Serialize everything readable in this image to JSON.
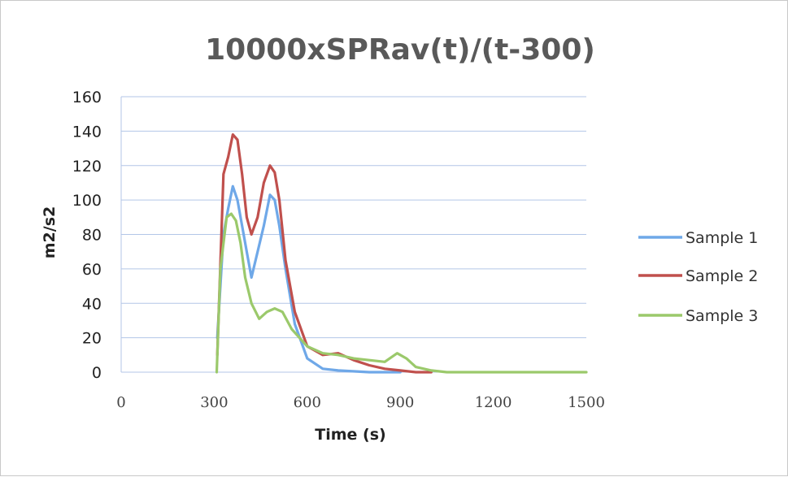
{
  "chart_data": {
    "type": "line",
    "title": "10000xSPRav(t)/(t-300)",
    "xlabel": "Time (s)",
    "ylabel": "m2/s2",
    "xlim": [
      0,
      1500
    ],
    "ylim": [
      0,
      160
    ],
    "xticks": [
      "0",
      "300",
      "600",
      "900",
      "1200",
      "1500"
    ],
    "yticks": [
      "0",
      "20",
      "40",
      "60",
      "80",
      "100",
      "120",
      "140",
      "160"
    ],
    "grid": "horizontal",
    "legend": "right",
    "series": [
      {
        "name": "Sample 1",
        "color": "#6fa8e8",
        "x": [
          310,
          330,
          345,
          360,
          375,
          390,
          405,
          420,
          440,
          460,
          480,
          495,
          510,
          530,
          560,
          600,
          650,
          700,
          800,
          900
        ],
        "y": [
          20,
          80,
          95,
          108,
          100,
          85,
          70,
          55,
          70,
          85,
          103,
          100,
          85,
          60,
          28,
          8,
          2,
          1,
          0,
          0
        ]
      },
      {
        "name": "Sample 2",
        "color": "#c0504d",
        "x": [
          310,
          330,
          345,
          360,
          375,
          390,
          405,
          420,
          440,
          460,
          480,
          495,
          510,
          530,
          560,
          600,
          650,
          700,
          750,
          800,
          850,
          900,
          950,
          1000
        ],
        "y": [
          10,
          115,
          125,
          138,
          135,
          115,
          90,
          80,
          90,
          110,
          120,
          116,
          100,
          65,
          35,
          15,
          10,
          11,
          7,
          4,
          2,
          1,
          0,
          0
        ]
      },
      {
        "name": "Sample 3",
        "color": "#9bc96b",
        "x": [
          308,
          320,
          340,
          355,
          370,
          385,
          400,
          420,
          445,
          470,
          495,
          520,
          550,
          600,
          650,
          700,
          750,
          800,
          850,
          890,
          920,
          950,
          1000,
          1050,
          1200,
          1350,
          1500
        ],
        "y": [
          0,
          60,
          90,
          92,
          88,
          75,
          55,
          40,
          31,
          35,
          37,
          35,
          25,
          15,
          11,
          10,
          8,
          7,
          6,
          11,
          8,
          3,
          1,
          0,
          0,
          0,
          0
        ]
      }
    ]
  }
}
